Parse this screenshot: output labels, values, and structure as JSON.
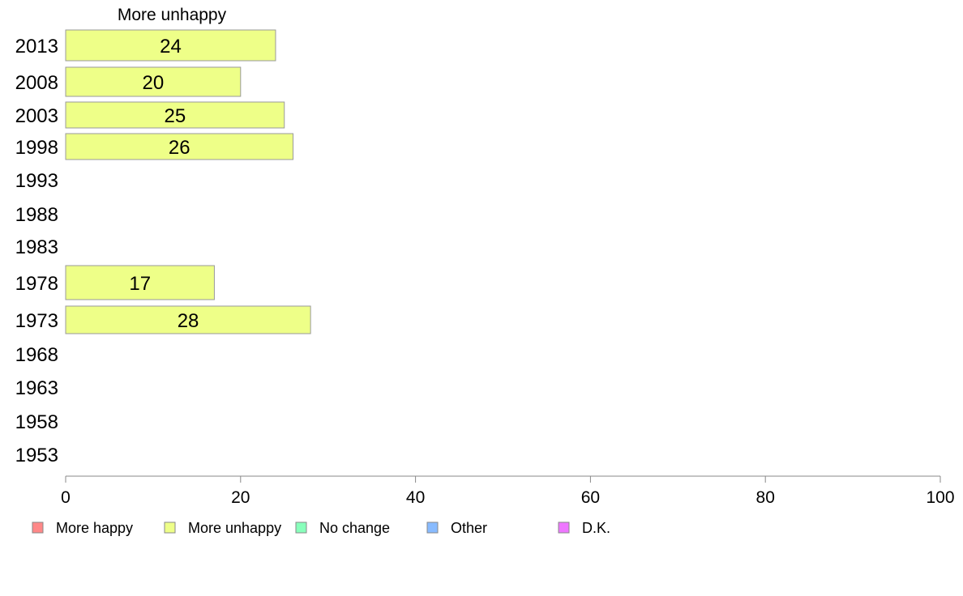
{
  "chart_data": {
    "type": "bar",
    "orientation": "horizontal",
    "title": "More unhappy",
    "categories": [
      "2013",
      "2008",
      "2003",
      "1998",
      "1993",
      "1988",
      "1983",
      "1978",
      "1973",
      "1968",
      "1963",
      "1958",
      "1953"
    ],
    "series": [
      {
        "name": "More unhappy",
        "color": "#eeff88",
        "values": [
          24,
          20,
          25,
          26,
          null,
          null,
          null,
          17,
          28,
          null,
          null,
          null,
          null
        ],
        "labels": [
          "24",
          "20",
          "25",
          "26",
          "",
          "",
          "",
          "17",
          "28",
          "",
          "",
          "",
          ""
        ]
      }
    ],
    "xlim": [
      0,
      100
    ],
    "xticks": [
      "0",
      "20",
      "40",
      "60",
      "80",
      "100"
    ],
    "grid": false,
    "legend_position": "bottom",
    "legend": [
      {
        "label": "More happy",
        "color": "#ff8888"
      },
      {
        "label": "More unhappy",
        "color": "#eeff88"
      },
      {
        "label": "No change",
        "color": "#88ffbb"
      },
      {
        "label": "Other",
        "color": "#88bbff"
      },
      {
        "label": "D.K.",
        "color": "#ee77ff"
      }
    ]
  }
}
